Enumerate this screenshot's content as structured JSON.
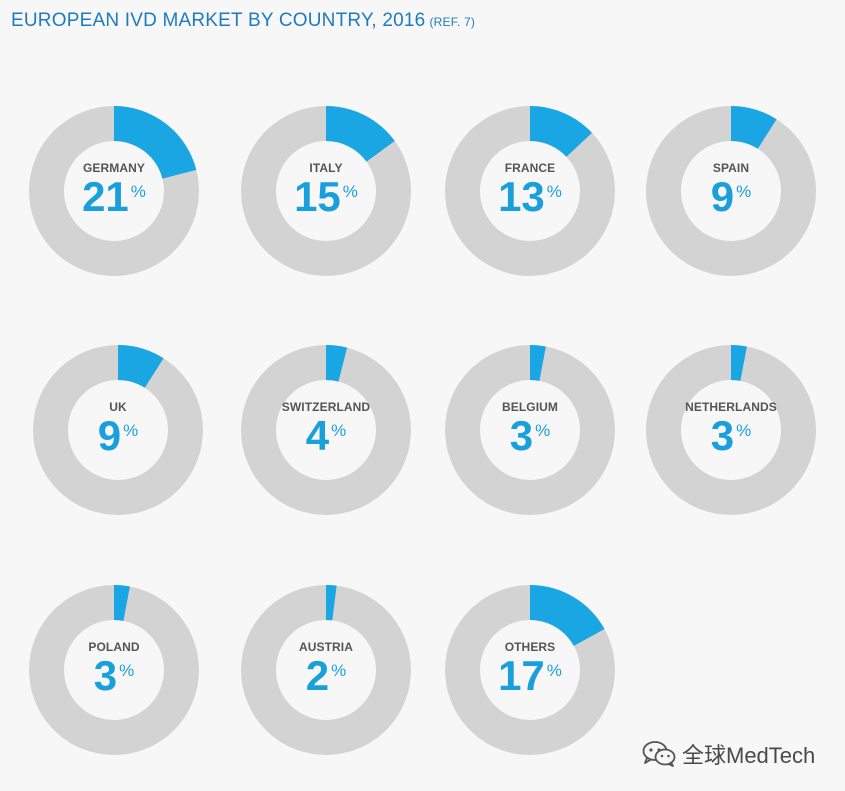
{
  "title": {
    "main": "EUROPEAN IVD MARKET BY COUNTRY, 2016",
    "ref": "(REF. 7)"
  },
  "colors": {
    "share": "#1aa5e3",
    "rest": "#d3d3d3",
    "value_text": "#1a9fdd",
    "label_text": "#555555",
    "title_text": "#1e7bbf"
  },
  "chart_data": {
    "type": "pie",
    "style": "donut",
    "title": "EUROPEAN IVD MARKET BY COUNTRY, 2016",
    "unit": "%",
    "categories": [
      "GERMANY",
      "ITALY",
      "FRANCE",
      "SPAIN",
      "UK",
      "SWITZERLAND",
      "BELGIUM",
      "NETHERLANDS",
      "POLAND",
      "AUSTRIA",
      "OTHERS"
    ],
    "values": [
      21,
      15,
      13,
      9,
      9,
      4,
      3,
      3,
      3,
      2,
      17
    ]
  },
  "watermark": {
    "icon": "wechat-icon",
    "text": "全球MedTech"
  }
}
